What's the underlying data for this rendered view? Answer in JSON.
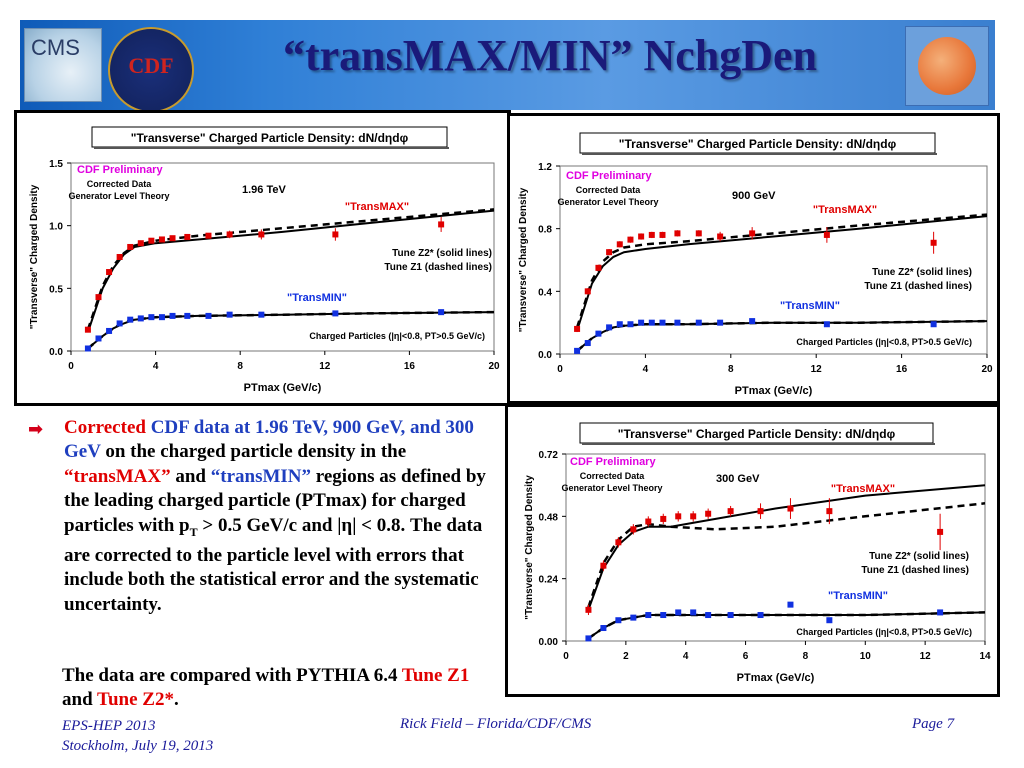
{
  "slide": {
    "title": "“transMAX/MIN” NchgDen",
    "logos": {
      "cms": "CMS",
      "cdf": "CDF"
    },
    "bullet": {
      "p1": "Corrected",
      "p2": " CDF data at 1.96 TeV, 900 GeV, and 300 GeV",
      "p3": " on the charged particle density in the ",
      "p4": "“transMAX”",
      "p5": " and ",
      "p6": "“transMIN”",
      "p7": " regions as defined by the leading charged particle (PTmax) for charged particles with p",
      "p7sub": "T",
      "p8": " > 0.5 GeV/c and |η| < 0.8. The data are corrected to the particle level with errors that include both the statistical error and the systematic uncertainty."
    },
    "para2": {
      "p1": "The data are compared with PYTHIA 6.4 ",
      "p2": "Tune Z1",
      "p3": " and ",
      "p4": "Tune Z2*",
      "p5": "."
    },
    "footer": {
      "left1": "EPS-HEP 2013",
      "left2": "Stockholm, July 19, 2013",
      "center": "Rick Field – Florida/CDF/CMS",
      "right": "Page 7"
    },
    "colors": {
      "maxpts": "#e00000",
      "minpts": "#1030e0",
      "cdf_label": "#e000e0",
      "transmin_label": "#1030e0"
    }
  },
  "chart_data": [
    {
      "id": "c196",
      "type": "scatter",
      "title": "\"Transverse\" Charged Particle Density: dN/dηdφ",
      "ylabel": "\"Transverse\" Charged Density",
      "xlabel": "PTmax  (GeV/c)",
      "energy": "1.96 TeV",
      "cdf_label": "CDF Preliminary",
      "corr1": "Corrected Data",
      "corr2": "Generator Level Theory",
      "tune1": "Tune Z2* (solid lines)",
      "tune2": "Tune Z1 (dashed lines)",
      "charged": "Charged Particles (|η|<0.8, PT>0.5 GeV/c)",
      "max_label": "\"TransMAX\"",
      "min_label": "\"TransMIN\"",
      "xlim": [
        0,
        20
      ],
      "ylim": [
        0,
        1.5
      ],
      "xticks": [
        "0",
        "4",
        "8",
        "12",
        "16",
        "20"
      ],
      "yticks": [
        "0.0",
        "0.5",
        "1.0",
        "1.5"
      ],
      "max_points": [
        [
          0.8,
          0.17
        ],
        [
          1.3,
          0.43
        ],
        [
          1.8,
          0.63
        ],
        [
          2.3,
          0.75
        ],
        [
          2.8,
          0.83
        ],
        [
          3.3,
          0.86
        ],
        [
          3.8,
          0.88
        ],
        [
          4.3,
          0.89
        ],
        [
          4.8,
          0.9
        ],
        [
          5.5,
          0.91
        ],
        [
          6.5,
          0.92
        ],
        [
          7.5,
          0.93
        ],
        [
          9,
          0.93
        ],
        [
          12.5,
          0.93
        ],
        [
          17.5,
          1.01
        ]
      ],
      "max_err": [
        0.02,
        0.02,
        0.02,
        0.02,
        0.02,
        0.02,
        0.02,
        0.02,
        0.02,
        0.02,
        0.02,
        0.03,
        0.04,
        0.05,
        0.06
      ],
      "min_points": [
        [
          0.8,
          0.02
        ],
        [
          1.3,
          0.1
        ],
        [
          1.8,
          0.16
        ],
        [
          2.3,
          0.22
        ],
        [
          2.8,
          0.25
        ],
        [
          3.3,
          0.26
        ],
        [
          3.8,
          0.27
        ],
        [
          4.3,
          0.27
        ],
        [
          4.8,
          0.28
        ],
        [
          5.5,
          0.28
        ],
        [
          6.5,
          0.28
        ],
        [
          7.5,
          0.29
        ],
        [
          9,
          0.29
        ],
        [
          12.5,
          0.3
        ],
        [
          17.5,
          0.31
        ]
      ],
      "z2_max": [
        [
          0.8,
          0.15
        ],
        [
          1.5,
          0.5
        ],
        [
          2,
          0.66
        ],
        [
          2.5,
          0.77
        ],
        [
          3,
          0.83
        ],
        [
          4,
          0.86
        ],
        [
          6,
          0.89
        ],
        [
          10,
          0.95
        ],
        [
          14,
          1.02
        ],
        [
          20,
          1.12
        ]
      ],
      "z1_max": [
        [
          0.8,
          0.17
        ],
        [
          1.5,
          0.52
        ],
        [
          2,
          0.68
        ],
        [
          2.5,
          0.78
        ],
        [
          3,
          0.84
        ],
        [
          4,
          0.88
        ],
        [
          6,
          0.92
        ],
        [
          10,
          0.98
        ],
        [
          14,
          1.04
        ],
        [
          20,
          1.13
        ]
      ],
      "z2_min": [
        [
          0.8,
          0.02
        ],
        [
          1.5,
          0.12
        ],
        [
          2,
          0.18
        ],
        [
          2.5,
          0.22
        ],
        [
          3,
          0.25
        ],
        [
          4,
          0.27
        ],
        [
          6,
          0.28
        ],
        [
          10,
          0.29
        ],
        [
          14,
          0.3
        ],
        [
          20,
          0.31
        ]
      ],
      "z1_min": [
        [
          0.8,
          0.02
        ],
        [
          1.5,
          0.12
        ],
        [
          2,
          0.18
        ],
        [
          2.5,
          0.23
        ],
        [
          3,
          0.25
        ],
        [
          4,
          0.27
        ],
        [
          6,
          0.28
        ],
        [
          10,
          0.29
        ],
        [
          14,
          0.3
        ],
        [
          20,
          0.31
        ]
      ]
    },
    {
      "id": "c900",
      "type": "scatter",
      "title": "\"Transverse\" Charged Particle Density: dN/dηdφ",
      "ylabel": "\"Transverse\" Charged Density",
      "xlabel": "PTmax  (GeV/c)",
      "energy": "900 GeV",
      "cdf_label": "CDF Preliminary",
      "corr1": "Corrected Data",
      "corr2": "Generator Level Theory",
      "tune1": "Tune Z2* (solid lines)",
      "tune2": "Tune Z1 (dashed lines)",
      "charged": "Charged Particles (|η|<0.8, PT>0.5 GeV/c)",
      "max_label": "\"TransMAX\"",
      "min_label": "\"TransMIN\"",
      "xlim": [
        0,
        20
      ],
      "ylim": [
        0,
        1.2
      ],
      "xticks": [
        "0",
        "4",
        "8",
        "12",
        "16",
        "20"
      ],
      "yticks": [
        "0.0",
        "0.4",
        "0.8",
        "1.2"
      ],
      "max_points": [
        [
          0.8,
          0.16
        ],
        [
          1.3,
          0.4
        ],
        [
          1.8,
          0.55
        ],
        [
          2.3,
          0.65
        ],
        [
          2.8,
          0.7
        ],
        [
          3.3,
          0.73
        ],
        [
          3.8,
          0.75
        ],
        [
          4.3,
          0.76
        ],
        [
          4.8,
          0.76
        ],
        [
          5.5,
          0.77
        ],
        [
          6.5,
          0.77
        ],
        [
          7.5,
          0.75
        ],
        [
          9,
          0.77
        ],
        [
          12.5,
          0.76
        ],
        [
          17.5,
          0.71
        ]
      ],
      "max_err": [
        0.02,
        0.02,
        0.02,
        0.02,
        0.02,
        0.02,
        0.02,
        0.02,
        0.02,
        0.02,
        0.02,
        0.03,
        0.04,
        0.05,
        0.07
      ],
      "min_points": [
        [
          0.8,
          0.02
        ],
        [
          1.3,
          0.07
        ],
        [
          1.8,
          0.13
        ],
        [
          2.3,
          0.17
        ],
        [
          2.8,
          0.19
        ],
        [
          3.3,
          0.19
        ],
        [
          3.8,
          0.2
        ],
        [
          4.3,
          0.2
        ],
        [
          4.8,
          0.2
        ],
        [
          5.5,
          0.2
        ],
        [
          6.5,
          0.2
        ],
        [
          7.5,
          0.2
        ],
        [
          9,
          0.21
        ],
        [
          12.5,
          0.19
        ],
        [
          17.5,
          0.19
        ]
      ],
      "z2_max": [
        [
          0.8,
          0.15
        ],
        [
          1.5,
          0.45
        ],
        [
          2,
          0.56
        ],
        [
          2.5,
          0.62
        ],
        [
          3,
          0.65
        ],
        [
          4,
          0.67
        ],
        [
          6,
          0.7
        ],
        [
          10,
          0.75
        ],
        [
          14,
          0.8
        ],
        [
          20,
          0.88
        ]
      ],
      "z1_max": [
        [
          0.8,
          0.17
        ],
        [
          1.5,
          0.47
        ],
        [
          2,
          0.59
        ],
        [
          2.5,
          0.65
        ],
        [
          3,
          0.68
        ],
        [
          4,
          0.7
        ],
        [
          6,
          0.72
        ],
        [
          10,
          0.77
        ],
        [
          14,
          0.82
        ],
        [
          20,
          0.89
        ]
      ],
      "z2_min": [
        [
          0.8,
          0.02
        ],
        [
          1.5,
          0.1
        ],
        [
          2,
          0.14
        ],
        [
          2.5,
          0.17
        ],
        [
          3,
          0.18
        ],
        [
          4,
          0.19
        ],
        [
          6,
          0.19
        ],
        [
          10,
          0.2
        ],
        [
          14,
          0.2
        ],
        [
          20,
          0.21
        ]
      ],
      "z1_min": [
        [
          0.8,
          0.02
        ],
        [
          1.5,
          0.1
        ],
        [
          2,
          0.14
        ],
        [
          2.5,
          0.17
        ],
        [
          3,
          0.18
        ],
        [
          4,
          0.19
        ],
        [
          6,
          0.19
        ],
        [
          10,
          0.2
        ],
        [
          14,
          0.2
        ],
        [
          20,
          0.21
        ]
      ]
    },
    {
      "id": "c300",
      "type": "scatter",
      "title": "\"Transverse\" Charged Particle Density: dN/dηdφ",
      "ylabel": "\"Transverse\" Charged Density",
      "xlabel": "PTmax  (GeV/c)",
      "energy": "300 GeV",
      "cdf_label": "CDF Preliminary",
      "corr1": "Corrected Data",
      "corr2": "Generator Level Theory",
      "tune1": "Tune Z2* (solid lines)",
      "tune2": "Tune Z1 (dashed lines)",
      "charged": "Charged Particles (|η|<0.8, PT>0.5 GeV/c)",
      "max_label": "\"TransMAX\"",
      "min_label": "\"TransMIN\"",
      "xlim": [
        0,
        14
      ],
      "ylim": [
        0,
        0.72
      ],
      "xticks": [
        "0",
        "2",
        "4",
        "6",
        "8",
        "10",
        "12",
        "14"
      ],
      "yticks": [
        "0.00",
        "0.24",
        "0.48",
        "0.72"
      ],
      "max_points": [
        [
          0.75,
          0.12
        ],
        [
          1.25,
          0.29
        ],
        [
          1.75,
          0.38
        ],
        [
          2.25,
          0.43
        ],
        [
          2.75,
          0.46
        ],
        [
          3.25,
          0.47
        ],
        [
          3.75,
          0.48
        ],
        [
          4.25,
          0.48
        ],
        [
          4.75,
          0.49
        ],
        [
          5.5,
          0.5
        ],
        [
          6.5,
          0.5
        ],
        [
          7.5,
          0.51
        ],
        [
          8.8,
          0.5
        ],
        [
          12.5,
          0.42
        ]
      ],
      "max_err": [
        0.02,
        0.02,
        0.02,
        0.02,
        0.02,
        0.02,
        0.02,
        0.02,
        0.02,
        0.02,
        0.03,
        0.04,
        0.05,
        0.07
      ],
      "min_points": [
        [
          0.75,
          0.01
        ],
        [
          1.25,
          0.05
        ],
        [
          1.75,
          0.08
        ],
        [
          2.25,
          0.09
        ],
        [
          2.75,
          0.1
        ],
        [
          3.25,
          0.1
        ],
        [
          3.75,
          0.11
        ],
        [
          4.25,
          0.11
        ],
        [
          4.75,
          0.1
        ],
        [
          5.5,
          0.1
        ],
        [
          6.5,
          0.1
        ],
        [
          7.5,
          0.14
        ],
        [
          8.8,
          0.08
        ],
        [
          12.5,
          0.11
        ]
      ],
      "z2_max": [
        [
          0.75,
          0.12
        ],
        [
          1.25,
          0.28
        ],
        [
          1.75,
          0.37
        ],
        [
          2.25,
          0.42
        ],
        [
          2.75,
          0.44
        ],
        [
          3.5,
          0.44
        ],
        [
          5,
          0.47
        ],
        [
          7,
          0.51
        ],
        [
          10,
          0.56
        ],
        [
          14,
          0.6
        ]
      ],
      "z1_max": [
        [
          0.75,
          0.13
        ],
        [
          1.25,
          0.3
        ],
        [
          1.75,
          0.39
        ],
        [
          2.25,
          0.44
        ],
        [
          2.75,
          0.45
        ],
        [
          3.5,
          0.44
        ],
        [
          5,
          0.43
        ],
        [
          7,
          0.44
        ],
        [
          10,
          0.48
        ],
        [
          14,
          0.53
        ]
      ],
      "z2_min": [
        [
          0.75,
          0.01
        ],
        [
          1.25,
          0.05
        ],
        [
          1.75,
          0.08
        ],
        [
          2.25,
          0.09
        ],
        [
          2.75,
          0.1
        ],
        [
          4,
          0.1
        ],
        [
          6,
          0.1
        ],
        [
          10,
          0.1
        ],
        [
          14,
          0.11
        ]
      ],
      "z1_min": [
        [
          0.75,
          0.01
        ],
        [
          1.25,
          0.05
        ],
        [
          1.75,
          0.08
        ],
        [
          2.25,
          0.09
        ],
        [
          2.75,
          0.1
        ],
        [
          4,
          0.1
        ],
        [
          6,
          0.1
        ],
        [
          10,
          0.1
        ],
        [
          14,
          0.11
        ]
      ]
    }
  ]
}
